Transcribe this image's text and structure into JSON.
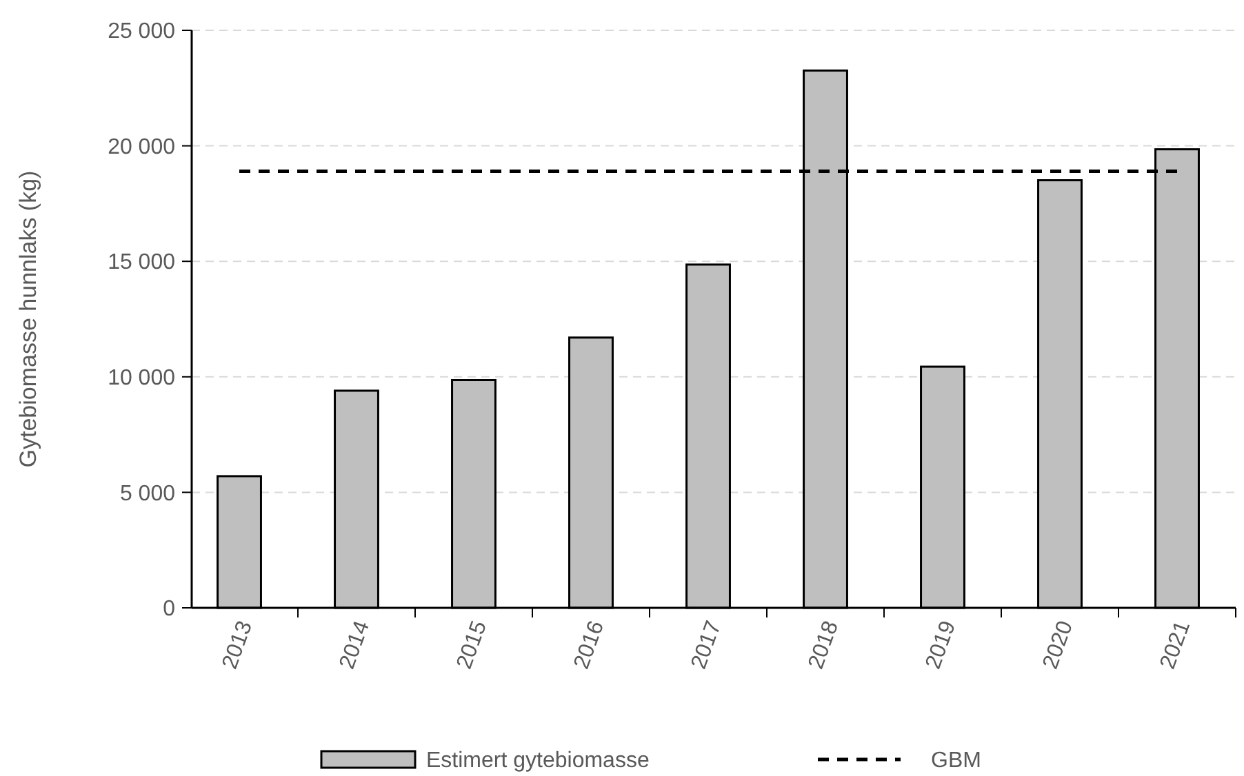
{
  "chart_data": {
    "type": "bar",
    "ylabel": "Gytebiomasse hunnlaks (kg)",
    "categories": [
      "2013",
      "2014",
      "2015",
      "2016",
      "2017",
      "2018",
      "2019",
      "2020",
      "2021"
    ],
    "series": [
      {
        "name": "Estimert gytebiomasse",
        "color": "#bfbfbf",
        "values": [
          5700,
          9400,
          9860,
          11700,
          14860,
          23260,
          10440,
          18510,
          19850
        ]
      },
      {
        "name": "GBM",
        "type": "line",
        "color": "#000000",
        "line_style": "dashed",
        "values": [
          18900,
          18900,
          18900,
          18900,
          18900,
          18900,
          18900,
          18900,
          18900
        ]
      }
    ],
    "ylim": [
      0,
      25000
    ],
    "yticks": [
      {
        "value": 0,
        "label": "0"
      },
      {
        "value": 5000,
        "label": "5 000"
      },
      {
        "value": 10000,
        "label": "10 000"
      },
      {
        "value": 15000,
        "label": "15 000"
      },
      {
        "value": 20000,
        "label": "20 000"
      },
      {
        "value": 25000,
        "label": "25 000"
      }
    ],
    "grid": "y",
    "legend": "bottom"
  }
}
